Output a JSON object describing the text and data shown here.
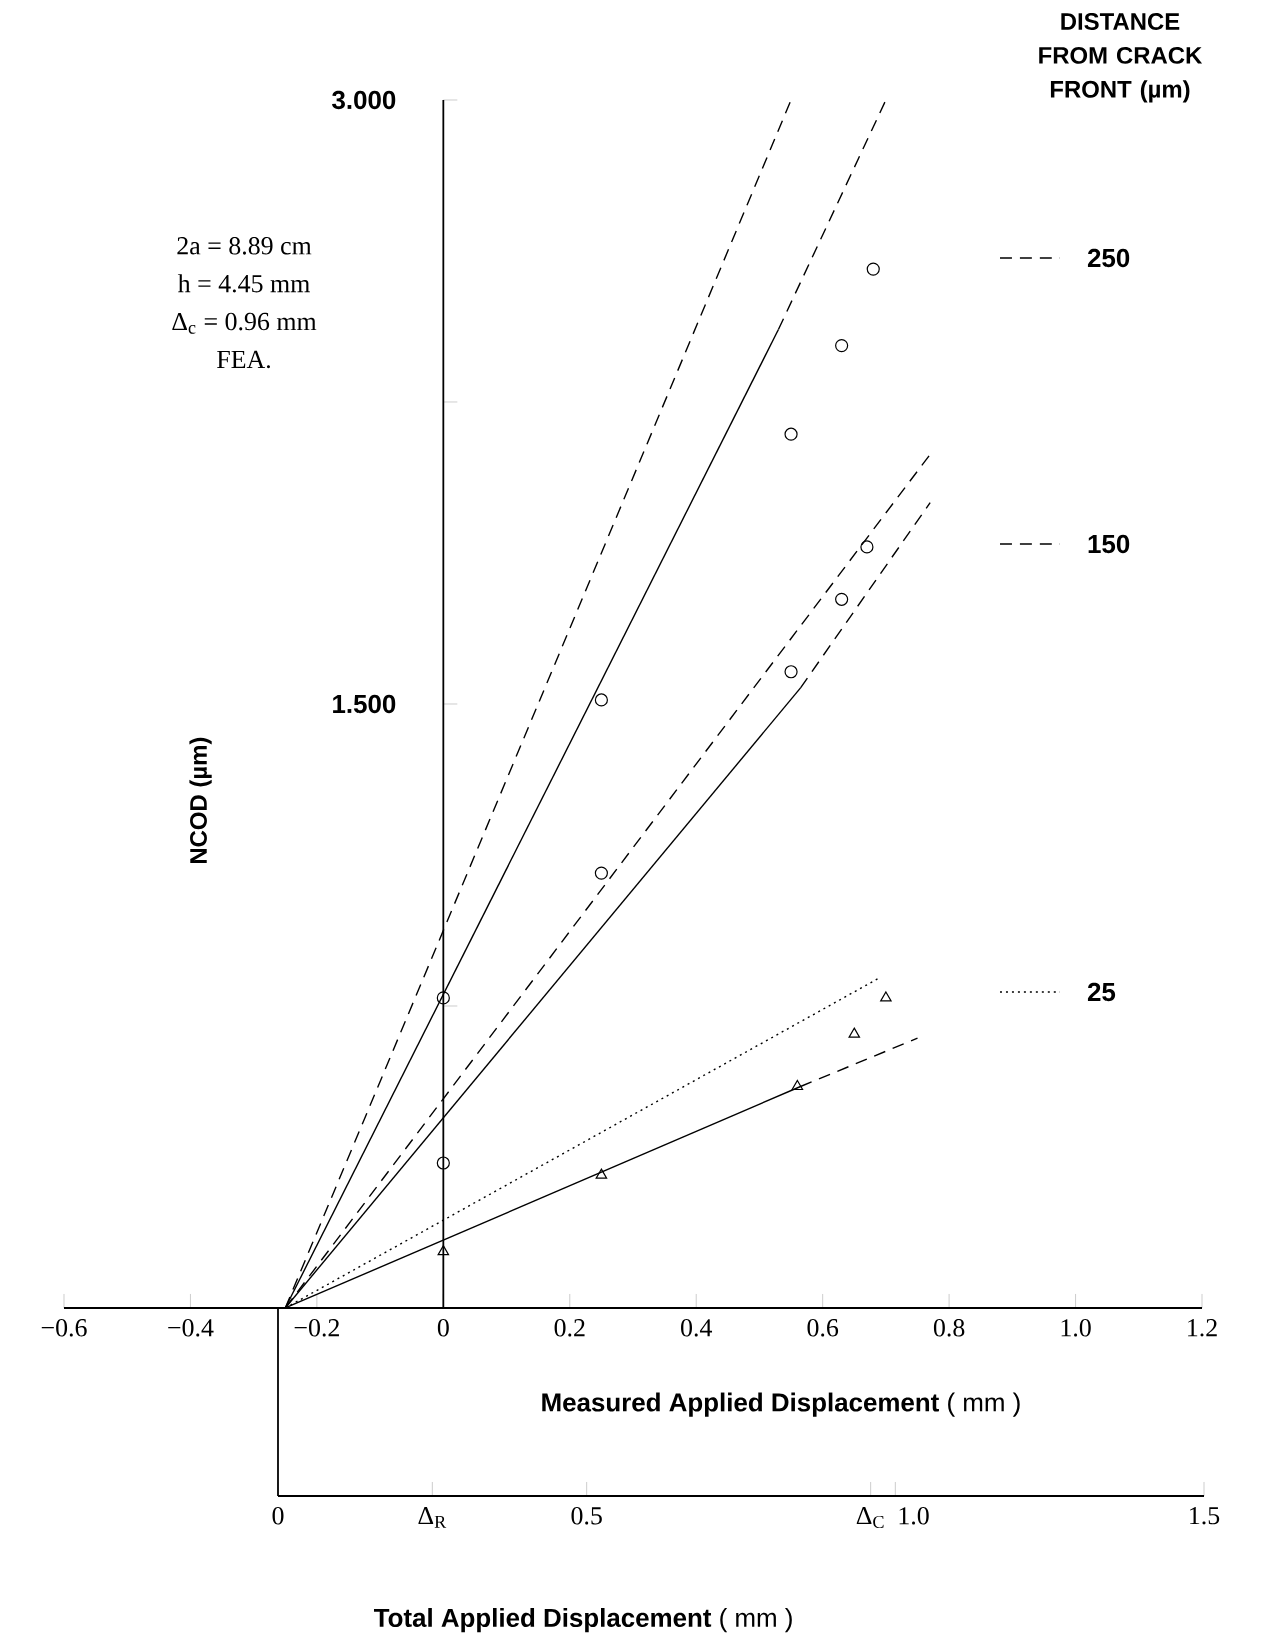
{
  "chart_data": {
    "type": "line",
    "xlabel": "**Measured Applied Displacement**  ( mm )",
    "ylabel": "NCOD (µm)",
    "x2label": "**Total Applied Displacement**  ( mm )",
    "legend_title": "DISTANCE FROM CRACK FRONT (µm)",
    "legend": "right",
    "annotations": [
      "2a = 8.89 cm",
      "h = 4.45 mm",
      "Δ$_{c}$ = 0.96 mm",
      "FEA."
    ],
    "xlim": [
      -0.6,
      1.2
    ],
    "xticks": [
      {
        "value": -0.6,
        "label": "−0.6"
      },
      {
        "value": -0.4,
        "label": "−0.4"
      },
      {
        "value": -0.2,
        "label": "−0.2"
      },
      0,
      0.2,
      0.4,
      0.6,
      0.8,
      {
        "value": 1.0,
        "label": "1.0"
      },
      1.2
    ],
    "ylim": [
      0,
      3.0
    ],
    "yticks": [
      {
        "value": 0.75,
        "label": null
      },
      {
        "value": 1.5,
        "label": "1.500"
      },
      {
        "value": 2.25,
        "label": null
      },
      {
        "value": 3.0,
        "label": "3.000"
      }
    ],
    "x2lim": [
      0,
      1.5
    ],
    "x2ticks": [
      0,
      {
        "value": 0.25,
        "label": "Δ$_{R}$"
      },
      0.5,
      {
        "value": 0.96,
        "label": "Δ$_{C}$"
      },
      {
        "value": 1.0,
        "label": "1.0"
      },
      1.5
    ],
    "series": [
      {
        "type": "scatter",
        "marker": "circle",
        "color": "#000000",
        "x": [
          0,
          0.25,
          0.55,
          0.63,
          0.68
        ],
        "values": [
          0.77,
          1.51,
          2.17,
          2.39,
          2.58
        ]
      },
      {
        "type": "scatter",
        "marker": "circle",
        "color": "#000000",
        "x": [
          0,
          0.25,
          0.55,
          0.63,
          0.67
        ],
        "values": [
          0.36,
          1.08,
          1.58,
          1.76,
          1.89
        ]
      },
      {
        "type": "scatter",
        "marker": "triangle",
        "color": "#000000",
        "x": [
          0,
          0.25,
          0.56,
          0.65,
          0.7
        ],
        "values": [
          0.14,
          0.33,
          0.55,
          0.68,
          0.77
        ]
      },
      {
        "type": "line",
        "line_style": "solid",
        "color": "#000000",
        "x": [
          -0.25,
          0.53
        ],
        "values": [
          0,
          2.43
        ]
      },
      {
        "type": "line",
        "line_style": "solid",
        "color": "#000000",
        "x": [
          -0.25,
          0.565
        ],
        "values": [
          0,
          1.54
        ]
      },
      {
        "type": "line",
        "line_style": "solid",
        "color": "#000000",
        "x": [
          -0.25,
          0.565
        ],
        "values": [
          0,
          0.55
        ]
      },
      {
        "type": "line",
        "line_style": "dashed",
        "color": "#000000",
        "x": [
          0.53,
          0.7
        ],
        "values": [
          2.43,
          3.0
        ]
      },
      {
        "type": "line",
        "line_style": "dashed",
        "color": "#000000",
        "x": [
          0.565,
          0.77
        ],
        "values": [
          1.54,
          2.0
        ]
      },
      {
        "type": "line",
        "line_style": "dashed",
        "color": "#000000",
        "x": [
          0.565,
          0.75
        ],
        "values": [
          0.55,
          0.67
        ]
      },
      {
        "type": "line",
        "name": "250",
        "line_style": "dashed",
        "color": "#000000",
        "x": [
          -0.25,
          0.55
        ],
        "values": [
          0,
          3.0
        ]
      },
      {
        "type": "line",
        "name": "150",
        "line_style": "dashed",
        "color": "#000000",
        "x": [
          -0.25,
          0.77
        ],
        "values": [
          0,
          2.12
        ]
      },
      {
        "type": "line",
        "name": "25",
        "line_style": "dotted",
        "color": "#000000",
        "x": [
          -0.25,
          0.69
        ],
        "values": [
          0,
          0.82
        ]
      }
    ]
  }
}
